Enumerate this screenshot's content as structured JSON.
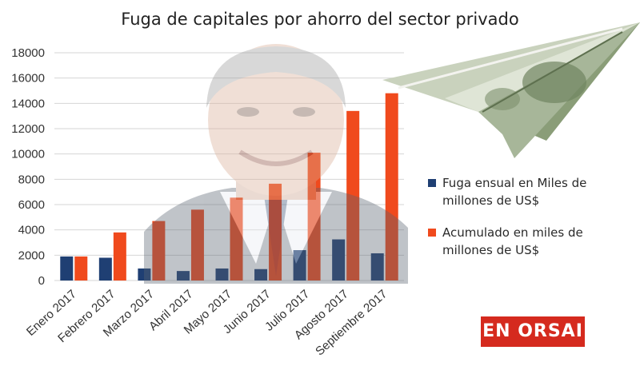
{
  "chart_data": {
    "type": "bar",
    "title": "Fuga de capitales por ahorro del sector privado",
    "categories": [
      "Enero 2017",
      "Febrero 2017",
      "Marzo 2017",
      "Abril 2017",
      "Mayo 2017",
      "Junio 2017",
      "Julio 2017",
      "Agosto 2017",
      "Septiembre 2017"
    ],
    "series": [
      {
        "name": "Fuga ensual en Miles de millones de US$",
        "color": "#1f3f73",
        "values": [
          1900,
          1800,
          950,
          750,
          950,
          900,
          2400,
          3250,
          2150
        ]
      },
      {
        "name": "Acumulado en miles de millones de US$",
        "color": "#f04a1d",
        "values": [
          1900,
          3800,
          4700,
          5600,
          6550,
          7650,
          10100,
          13400,
          14800
        ]
      }
    ],
    "ylim": [
      0,
      18000
    ],
    "yticks": [
      0,
      2000,
      4000,
      6000,
      8000,
      10000,
      12000,
      14000,
      16000,
      18000
    ],
    "grid": true,
    "legend_position": "right"
  },
  "badge": {
    "label": "EN ORSAI"
  }
}
